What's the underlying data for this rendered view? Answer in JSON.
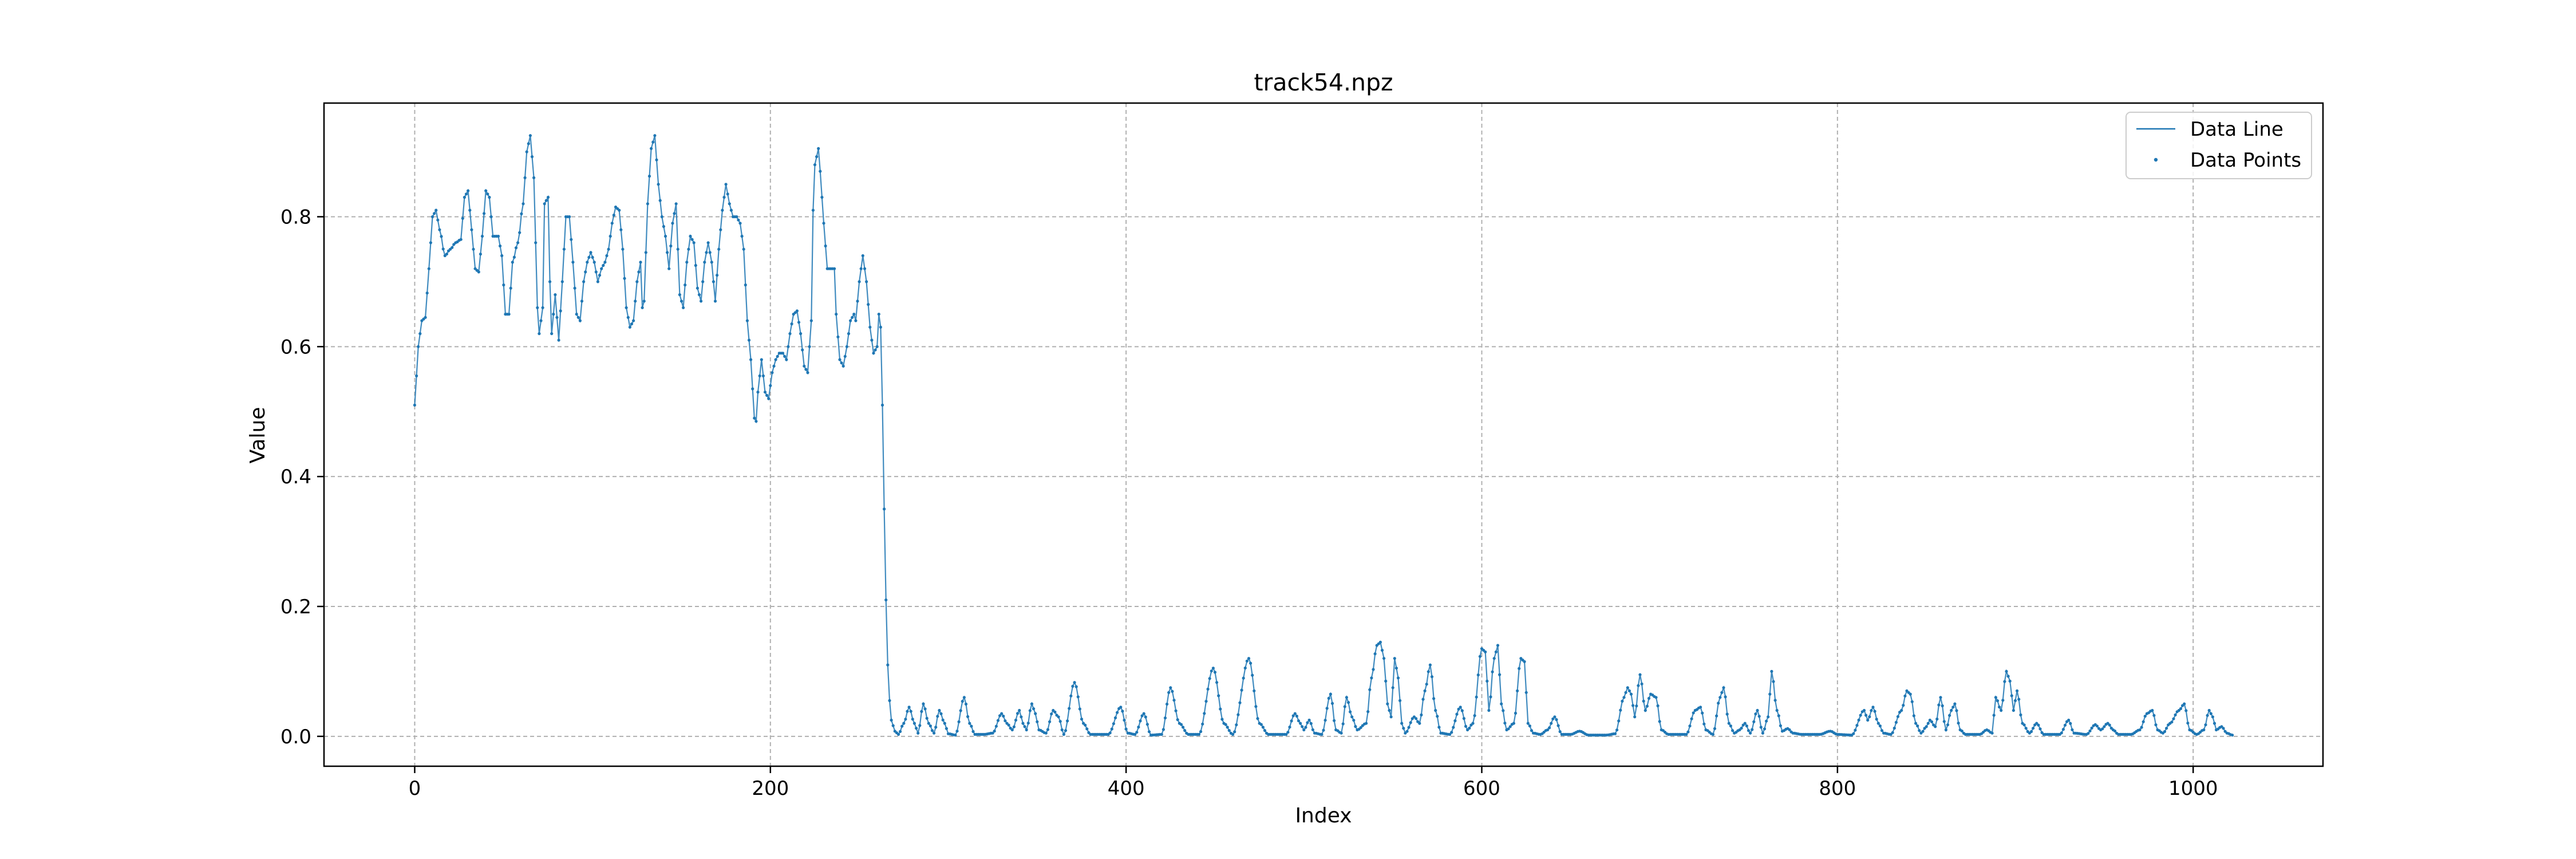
{
  "chart_data": {
    "type": "line",
    "title": "track54.npz",
    "xlabel": "Index",
    "ylabel": "Value",
    "xlim": [
      -51,
      1073
    ],
    "ylim": [
      -0.046,
      0.975
    ],
    "xticks": [
      0,
      200,
      400,
      600,
      800,
      1000
    ],
    "yticks": [
      0.0,
      0.2,
      0.4,
      0.6,
      0.8
    ],
    "grid": true,
    "legend_position": "top-right",
    "line_color": "#1f77b4",
    "series": [
      {
        "name": "Data Line",
        "style": "line"
      },
      {
        "name": "Data Points",
        "style": "points"
      }
    ],
    "x_step": 1,
    "n_points": 1023,
    "keypoints": [
      [
        0,
        0.51
      ],
      [
        2,
        0.6
      ],
      [
        4,
        0.64
      ],
      [
        6,
        0.645
      ],
      [
        8,
        0.72
      ],
      [
        10,
        0.8
      ],
      [
        12,
        0.81
      ],
      [
        14,
        0.78
      ],
      [
        17,
        0.74
      ],
      [
        20,
        0.75
      ],
      [
        23,
        0.76
      ],
      [
        26,
        0.765
      ],
      [
        28,
        0.83
      ],
      [
        30,
        0.84
      ],
      [
        32,
        0.78
      ],
      [
        34,
        0.72
      ],
      [
        36,
        0.715
      ],
      [
        38,
        0.77
      ],
      [
        40,
        0.84
      ],
      [
        42,
        0.83
      ],
      [
        44,
        0.77
      ],
      [
        47,
        0.77
      ],
      [
        49,
        0.74
      ],
      [
        51,
        0.65
      ],
      [
        53,
        0.65
      ],
      [
        55,
        0.73
      ],
      [
        58,
        0.76
      ],
      [
        61,
        0.82
      ],
      [
        63,
        0.9
      ],
      [
        65,
        0.925
      ],
      [
        67,
        0.86
      ],
      [
        69,
        0.66
      ],
      [
        70,
        0.62
      ],
      [
        72,
        0.66
      ],
      [
        73,
        0.82
      ],
      [
        75,
        0.83
      ],
      [
        76,
        0.7
      ],
      [
        77,
        0.62
      ],
      [
        79,
        0.68
      ],
      [
        81,
        0.61
      ],
      [
        83,
        0.7
      ],
      [
        85,
        0.8
      ],
      [
        87,
        0.8
      ],
      [
        89,
        0.73
      ],
      [
        91,
        0.65
      ],
      [
        93,
        0.64
      ],
      [
        95,
        0.7
      ],
      [
        97,
        0.73
      ],
      [
        99,
        0.745
      ],
      [
        101,
        0.73
      ],
      [
        103,
        0.7
      ],
      [
        105,
        0.72
      ],
      [
        107,
        0.73
      ],
      [
        109,
        0.75
      ],
      [
        111,
        0.79
      ],
      [
        113,
        0.815
      ],
      [
        115,
        0.81
      ],
      [
        117,
        0.75
      ],
      [
        119,
        0.66
      ],
      [
        121,
        0.63
      ],
      [
        123,
        0.64
      ],
      [
        125,
        0.7
      ],
      [
        127,
        0.73
      ],
      [
        128,
        0.66
      ],
      [
        129,
        0.67
      ],
      [
        131,
        0.82
      ],
      [
        133,
        0.905
      ],
      [
        135,
        0.925
      ],
      [
        137,
        0.85
      ],
      [
        139,
        0.8
      ],
      [
        141,
        0.77
      ],
      [
        143,
        0.72
      ],
      [
        145,
        0.79
      ],
      [
        147,
        0.82
      ],
      [
        149,
        0.68
      ],
      [
        151,
        0.66
      ],
      [
        153,
        0.73
      ],
      [
        155,
        0.77
      ],
      [
        157,
        0.76
      ],
      [
        159,
        0.69
      ],
      [
        161,
        0.67
      ],
      [
        163,
        0.73
      ],
      [
        165,
        0.76
      ],
      [
        167,
        0.73
      ],
      [
        169,
        0.67
      ],
      [
        171,
        0.75
      ],
      [
        173,
        0.81
      ],
      [
        175,
        0.85
      ],
      [
        177,
        0.82
      ],
      [
        179,
        0.8
      ],
      [
        181,
        0.8
      ],
      [
        183,
        0.79
      ],
      [
        185,
        0.75
      ],
      [
        187,
        0.64
      ],
      [
        189,
        0.58
      ],
      [
        191,
        0.49
      ],
      [
        192,
        0.485
      ],
      [
        193,
        0.53
      ],
      [
        195,
        0.58
      ],
      [
        197,
        0.53
      ],
      [
        199,
        0.52
      ],
      [
        201,
        0.56
      ],
      [
        203,
        0.58
      ],
      [
        205,
        0.59
      ],
      [
        207,
        0.59
      ],
      [
        209,
        0.58
      ],
      [
        211,
        0.62
      ],
      [
        213,
        0.65
      ],
      [
        215,
        0.655
      ],
      [
        217,
        0.62
      ],
      [
        219,
        0.57
      ],
      [
        221,
        0.56
      ],
      [
        223,
        0.64
      ],
      [
        224,
        0.81
      ],
      [
        225,
        0.88
      ],
      [
        227,
        0.905
      ],
      [
        228,
        0.87
      ],
      [
        230,
        0.79
      ],
      [
        232,
        0.72
      ],
      [
        234,
        0.72
      ],
      [
        236,
        0.72
      ],
      [
        237,
        0.65
      ],
      [
        239,
        0.58
      ],
      [
        241,
        0.57
      ],
      [
        243,
        0.6
      ],
      [
        245,
        0.64
      ],
      [
        247,
        0.65
      ],
      [
        248,
        0.64
      ],
      [
        250,
        0.7
      ],
      [
        252,
        0.74
      ],
      [
        254,
        0.7
      ],
      [
        256,
        0.63
      ],
      [
        258,
        0.59
      ],
      [
        260,
        0.6
      ],
      [
        261,
        0.65
      ],
      [
        262,
        0.63
      ],
      [
        263,
        0.51
      ],
      [
        264,
        0.35
      ],
      [
        265,
        0.21
      ],
      [
        266,
        0.11
      ],
      [
        267,
        0.055
      ],
      [
        268,
        0.025
      ],
      [
        270,
        0.008
      ],
      [
        272,
        0.003
      ],
      [
        275,
        0.02
      ],
      [
        278,
        0.045
      ],
      [
        281,
        0.02
      ],
      [
        283,
        0.005
      ],
      [
        286,
        0.05
      ],
      [
        289,
        0.02
      ],
      [
        292,
        0.005
      ],
      [
        295,
        0.04
      ],
      [
        298,
        0.02
      ],
      [
        300,
        0.004
      ],
      [
        304,
        0.002
      ],
      [
        309,
        0.06
      ],
      [
        312,
        0.02
      ],
      [
        315,
        0.003
      ],
      [
        320,
        0.003
      ],
      [
        325,
        0.005
      ],
      [
        330,
        0.035
      ],
      [
        333,
        0.02
      ],
      [
        336,
        0.01
      ],
      [
        340,
        0.04
      ],
      [
        342,
        0.02
      ],
      [
        344,
        0.01
      ],
      [
        347,
        0.05
      ],
      [
        349,
        0.035
      ],
      [
        351,
        0.01
      ],
      [
        355,
        0.005
      ],
      [
        359,
        0.04
      ],
      [
        362,
        0.03
      ],
      [
        365,
        0.003
      ],
      [
        371,
        0.083
      ],
      [
        376,
        0.02
      ],
      [
        380,
        0.003
      ],
      [
        390,
        0.003
      ],
      [
        397,
        0.045
      ],
      [
        401,
        0.005
      ],
      [
        405,
        0.003
      ],
      [
        410,
        0.035
      ],
      [
        414,
        0.002
      ],
      [
        420,
        0.003
      ],
      [
        425,
        0.075
      ],
      [
        430,
        0.02
      ],
      [
        435,
        0.003
      ],
      [
        441,
        0.003
      ],
      [
        449,
        0.105
      ],
      [
        455,
        0.02
      ],
      [
        460,
        0.003
      ],
      [
        469,
        0.12
      ],
      [
        475,
        0.02
      ],
      [
        480,
        0.003
      ],
      [
        490,
        0.003
      ],
      [
        495,
        0.035
      ],
      [
        498,
        0.02
      ],
      [
        500,
        0.01
      ],
      [
        503,
        0.025
      ],
      [
        506,
        0.005
      ],
      [
        510,
        0.003
      ],
      [
        515,
        0.065
      ],
      [
        518,
        0.01
      ],
      [
        521,
        0.005
      ],
      [
        524,
        0.06
      ],
      [
        527,
        0.03
      ],
      [
        530,
        0.01
      ],
      [
        535,
        0.02
      ],
      [
        538,
        0.09
      ],
      [
        541,
        0.14
      ],
      [
        543,
        0.145
      ],
      [
        545,
        0.12
      ],
      [
        547,
        0.05
      ],
      [
        549,
        0.03
      ],
      [
        551,
        0.12
      ],
      [
        553,
        0.09
      ],
      [
        555,
        0.02
      ],
      [
        557,
        0.005
      ],
      [
        562,
        0.03
      ],
      [
        565,
        0.02
      ],
      [
        568,
        0.07
      ],
      [
        571,
        0.11
      ],
      [
        574,
        0.04
      ],
      [
        577,
        0.005
      ],
      [
        582,
        0.003
      ],
      [
        588,
        0.045
      ],
      [
        592,
        0.01
      ],
      [
        595,
        0.02
      ],
      [
        600,
        0.135
      ],
      [
        602,
        0.13
      ],
      [
        604,
        0.04
      ],
      [
        607,
        0.12
      ],
      [
        609,
        0.14
      ],
      [
        611,
        0.05
      ],
      [
        614,
        0.01
      ],
      [
        618,
        0.02
      ],
      [
        622,
        0.12
      ],
      [
        624,
        0.115
      ],
      [
        626,
        0.02
      ],
      [
        629,
        0.005
      ],
      [
        633,
        0.003
      ],
      [
        637,
        0.01
      ],
      [
        641,
        0.03
      ],
      [
        645,
        0.003
      ],
      [
        650,
        0.003
      ],
      [
        655,
        0.008
      ],
      [
        660,
        0.002
      ],
      [
        670,
        0.002
      ],
      [
        675,
        0.004
      ],
      [
        680,
        0.06
      ],
      [
        682,
        0.075
      ],
      [
        684,
        0.065
      ],
      [
        686,
        0.03
      ],
      [
        689,
        0.095
      ],
      [
        692,
        0.04
      ],
      [
        695,
        0.065
      ],
      [
        698,
        0.06
      ],
      [
        701,
        0.01
      ],
      [
        705,
        0.003
      ],
      [
        715,
        0.003
      ],
      [
        720,
        0.04
      ],
      [
        723,
        0.045
      ],
      [
        726,
        0.01
      ],
      [
        730,
        0.003
      ],
      [
        734,
        0.06
      ],
      [
        736,
        0.075
      ],
      [
        739,
        0.02
      ],
      [
        742,
        0.005
      ],
      [
        745,
        0.01
      ],
      [
        748,
        0.02
      ],
      [
        751,
        0.005
      ],
      [
        755,
        0.04
      ],
      [
        758,
        0.005
      ],
      [
        761,
        0.03
      ],
      [
        763,
        0.1
      ],
      [
        766,
        0.04
      ],
      [
        769,
        0.008
      ],
      [
        772,
        0.012
      ],
      [
        775,
        0.005
      ],
      [
        780,
        0.003
      ],
      [
        790,
        0.003
      ],
      [
        796,
        0.008
      ],
      [
        800,
        0.003
      ],
      [
        808,
        0.002
      ],
      [
        815,
        0.04
      ],
      [
        817,
        0.025
      ],
      [
        820,
        0.045
      ],
      [
        823,
        0.02
      ],
      [
        826,
        0.005
      ],
      [
        830,
        0.003
      ],
      [
        836,
        0.04
      ],
      [
        839,
        0.07
      ],
      [
        841,
        0.065
      ],
      [
        844,
        0.02
      ],
      [
        847,
        0.005
      ],
      [
        850,
        0.015
      ],
      [
        852,
        0.025
      ],
      [
        855,
        0.015
      ],
      [
        858,
        0.06
      ],
      [
        861,
        0.01
      ],
      [
        864,
        0.04
      ],
      [
        866,
        0.05
      ],
      [
        869,
        0.01
      ],
      [
        872,
        0.003
      ],
      [
        880,
        0.003
      ],
      [
        884,
        0.01
      ],
      [
        887,
        0.005
      ],
      [
        889,
        0.06
      ],
      [
        892,
        0.04
      ],
      [
        895,
        0.1
      ],
      [
        897,
        0.085
      ],
      [
        899,
        0.04
      ],
      [
        901,
        0.07
      ],
      [
        904,
        0.02
      ],
      [
        908,
        0.005
      ],
      [
        912,
        0.02
      ],
      [
        916,
        0.003
      ],
      [
        925,
        0.003
      ],
      [
        930,
        0.025
      ],
      [
        933,
        0.005
      ],
      [
        940,
        0.003
      ],
      [
        945,
        0.018
      ],
      [
        948,
        0.01
      ],
      [
        952,
        0.02
      ],
      [
        955,
        0.01
      ],
      [
        958,
        0.003
      ],
      [
        965,
        0.003
      ],
      [
        970,
        0.01
      ],
      [
        974,
        0.035
      ],
      [
        977,
        0.04
      ],
      [
        980,
        0.01
      ],
      [
        983,
        0.005
      ],
      [
        987,
        0.02
      ],
      [
        992,
        0.04
      ],
      [
        995,
        0.05
      ],
      [
        998,
        0.01
      ],
      [
        1002,
        0.003
      ],
      [
        1006,
        0.01
      ],
      [
        1009,
        0.04
      ],
      [
        1011,
        0.03
      ],
      [
        1013,
        0.01
      ],
      [
        1016,
        0.015
      ],
      [
        1019,
        0.005
      ],
      [
        1022,
        0.002
      ]
    ]
  }
}
